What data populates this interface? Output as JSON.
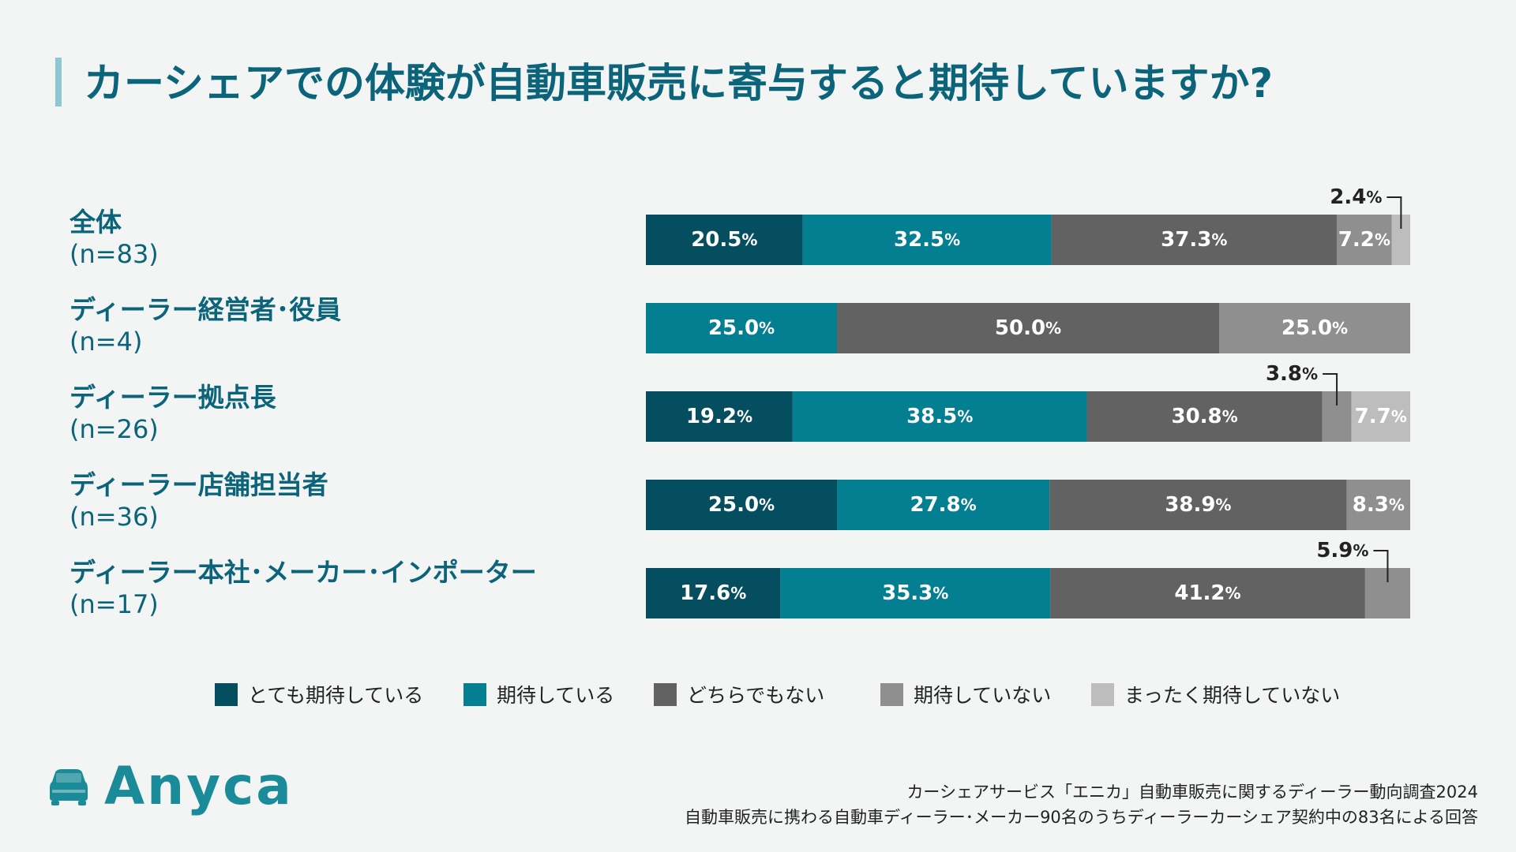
{
  "title": "カーシェアでの体験が自動車販売に寄与すると期待していますか?",
  "chart_data": {
    "type": "bar",
    "orientation": "horizontal-stacked-100",
    "xlim": [
      0,
      100
    ],
    "rows": [
      {
        "label": "全体",
        "n": "(n=83)",
        "values": [
          20.5,
          32.5,
          37.3,
          7.2,
          2.4
        ]
      },
      {
        "label": "ディーラー経営者･役員",
        "n": "(n=4)",
        "values": [
          0,
          25.0,
          50.0,
          25.0,
          0
        ]
      },
      {
        "label": "ディーラー拠点長",
        "n": "(n=26)",
        "values": [
          19.2,
          38.5,
          30.8,
          3.8,
          7.7
        ]
      },
      {
        "label": "ディーラー店舗担当者",
        "n": "(n=36)",
        "values": [
          25.0,
          27.8,
          38.9,
          8.3,
          0
        ]
      },
      {
        "label": "ディーラー本社･メーカー･インポーター",
        "n": "(n=17)",
        "values": [
          17.6,
          35.3,
          41.2,
          5.9,
          0
        ]
      }
    ],
    "series": [
      {
        "name": "とても期待している",
        "color": "#054e60"
      },
      {
        "name": "期待している",
        "color": "#047e91"
      },
      {
        "name": "どちらでもない",
        "color": "#626262"
      },
      {
        "name": "期待していない",
        "color": "#8f8f8f"
      },
      {
        "name": "まったく期待していない",
        "color": "#bdbdbd"
      }
    ],
    "callouts": [
      {
        "row": 0,
        "segment": 4,
        "text": "2.4",
        "side": "left"
      },
      {
        "row": 2,
        "segment": 3,
        "text": "3.8",
        "side": "left"
      },
      {
        "row": 4,
        "segment": 3,
        "text": "5.9",
        "side": "left"
      }
    ]
  },
  "source": {
    "line1": "カーシェアサービス「エニカ」自動車販売に関するディーラー動向調査2024",
    "line2": "自動車販売に携わる自動車ディーラー･メーカー90名のうちディーラーカーシェア契約中の83名による回答"
  },
  "logo": {
    "text": "Anyca"
  }
}
